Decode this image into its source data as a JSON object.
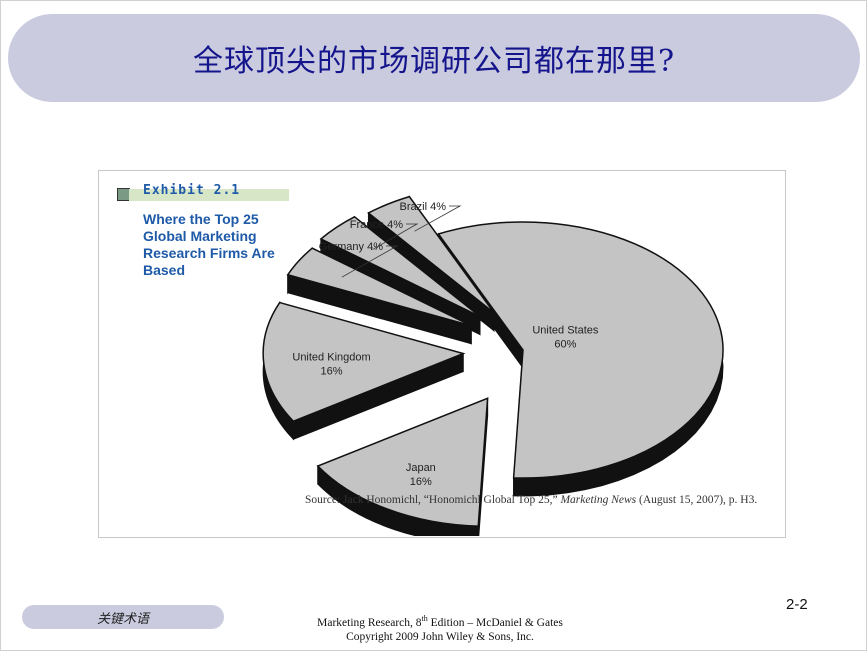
{
  "slide": {
    "title": "全球顶尖的市场调研公司都在那里?",
    "keyword_pill": "关键术语",
    "page_number": "2-2",
    "footer_line1_pre": "Marketing Research, 8",
    "footer_line1_sup": "th",
    "footer_line1_post": " Edition – McDaniel & Gates",
    "footer_line2": "Copyright 2009 John Wiley & Sons, Inc."
  },
  "exhibit": {
    "label": "Exhibit  2.1",
    "caption": "Where the Top 25 Global Marketing Research Firms Are Based",
    "source_pre": "Source: Jack Honomichl, “Honomichl Global Top 25,” ",
    "source_italic": "Marketing News",
    "source_post": " (August 15, 2007), p. H3."
  },
  "chart_data": {
    "type": "pie",
    "title": "Where the Top 25 Global Marketing Research Firms Are Based",
    "slices": [
      {
        "name": "United States",
        "value": 60,
        "label": "United States",
        "pct": "60%"
      },
      {
        "name": "Japan",
        "value": 16,
        "label": "Japan",
        "pct": "16%"
      },
      {
        "name": "United Kingdom",
        "value": 16,
        "label": "United Kingdom",
        "pct": "16%"
      },
      {
        "name": "Germany",
        "value": 4,
        "label": "Germany 4%",
        "pct": ""
      },
      {
        "name": "France",
        "value": 4,
        "label": "France 4%",
        "pct": ""
      },
      {
        "name": "Brazil",
        "value": 4,
        "label": "Brazil 4%",
        "pct": ""
      }
    ],
    "exploded": true,
    "three_d": true,
    "colors": {
      "face": "#c4c4c4",
      "side": "#111111",
      "edge": "#111111"
    }
  }
}
